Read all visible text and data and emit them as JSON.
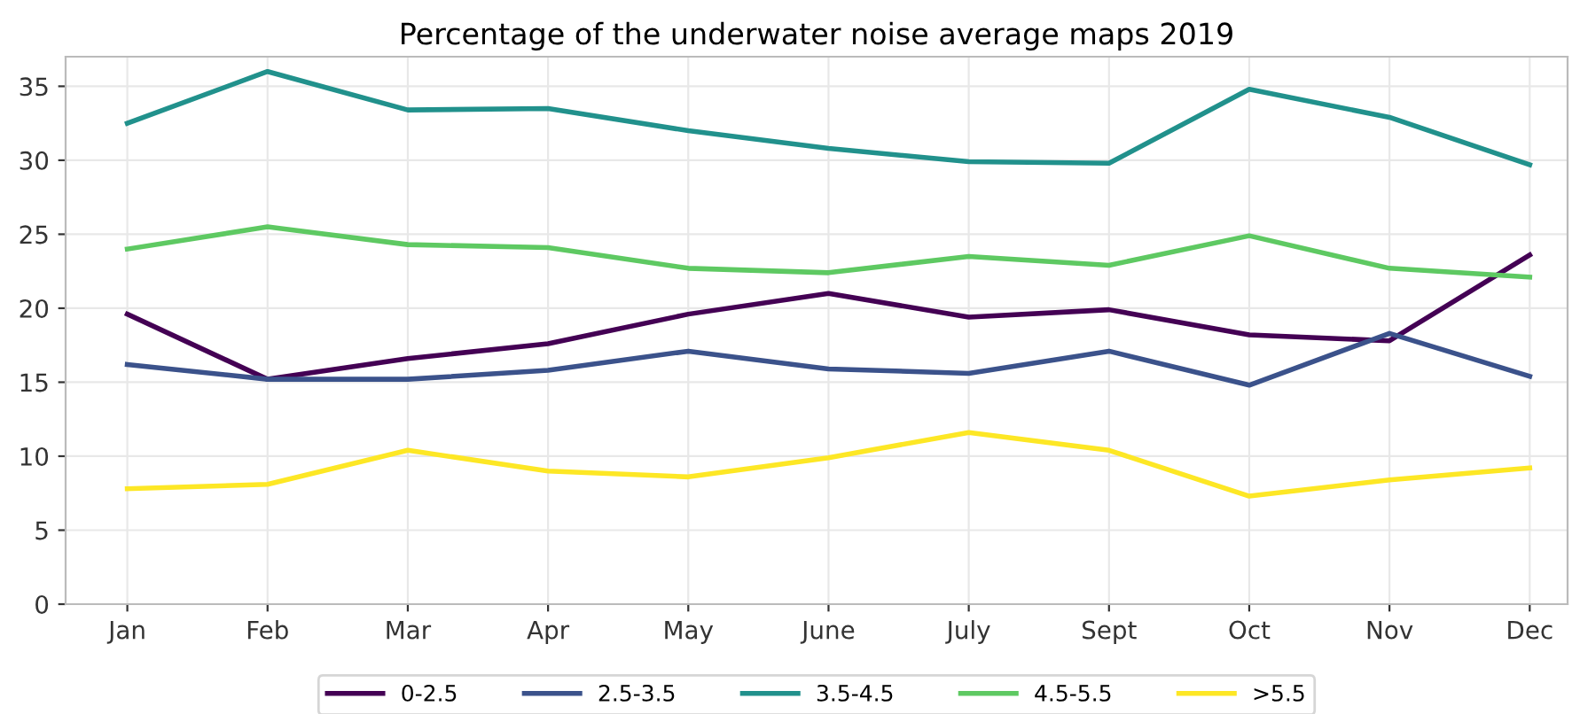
{
  "chart_data": {
    "type": "line",
    "title": "Percentage of the underwater noise average maps 2019",
    "categories": [
      "Jan",
      "Feb",
      "Mar",
      "Apr",
      "May",
      "June",
      "July",
      "Sept",
      "Oct",
      "Nov",
      "Dec"
    ],
    "series": [
      {
        "name": "0-2.5",
        "color": "#440154",
        "values": [
          19.6,
          15.2,
          16.6,
          17.6,
          19.6,
          21.0,
          19.4,
          19.9,
          18.2,
          17.8,
          23.6
        ]
      },
      {
        "name": "2.5-3.5",
        "color": "#3b528b",
        "values": [
          16.2,
          15.2,
          15.2,
          15.8,
          17.1,
          15.9,
          15.6,
          17.1,
          14.8,
          18.3,
          15.4
        ]
      },
      {
        "name": "3.5-4.5",
        "color": "#21918c",
        "values": [
          32.5,
          36.0,
          33.4,
          33.5,
          32.0,
          30.8,
          29.9,
          29.8,
          34.8,
          32.9,
          29.7
        ]
      },
      {
        "name": "4.5-5.5",
        "color": "#5ec962",
        "values": [
          24.0,
          25.5,
          24.3,
          24.1,
          22.7,
          22.4,
          23.5,
          22.9,
          24.9,
          22.7,
          22.1
        ]
      },
      {
        "name": ">5.5",
        "color": "#fde725",
        "values": [
          7.8,
          8.1,
          10.4,
          9.0,
          8.6,
          9.9,
          11.6,
          10.4,
          7.3,
          8.4,
          9.2
        ]
      }
    ],
    "ylim": [
      0,
      37
    ],
    "yticks": [
      0,
      5,
      10,
      15,
      20,
      25,
      30,
      35
    ],
    "grid": true,
    "legend": "bottom",
    "marker": "none",
    "line_style": "solid"
  }
}
